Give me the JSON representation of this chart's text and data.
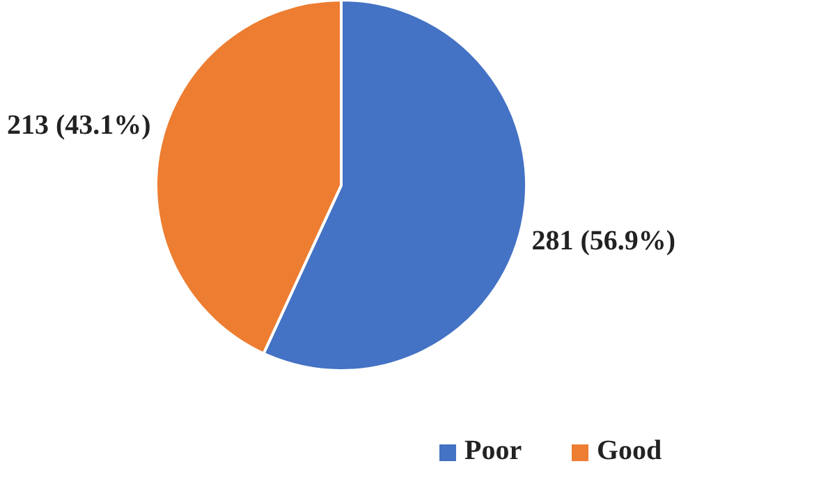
{
  "chart_data": {
    "type": "pie",
    "categories": [
      "Poor",
      "Good"
    ],
    "values": [
      281,
      213
    ],
    "colors": [
      "#4472c4",
      "#ed7d31"
    ],
    "value_labels": [
      "281 (56.9%)",
      "213 (43.1%)"
    ],
    "legend": "bottom"
  }
}
